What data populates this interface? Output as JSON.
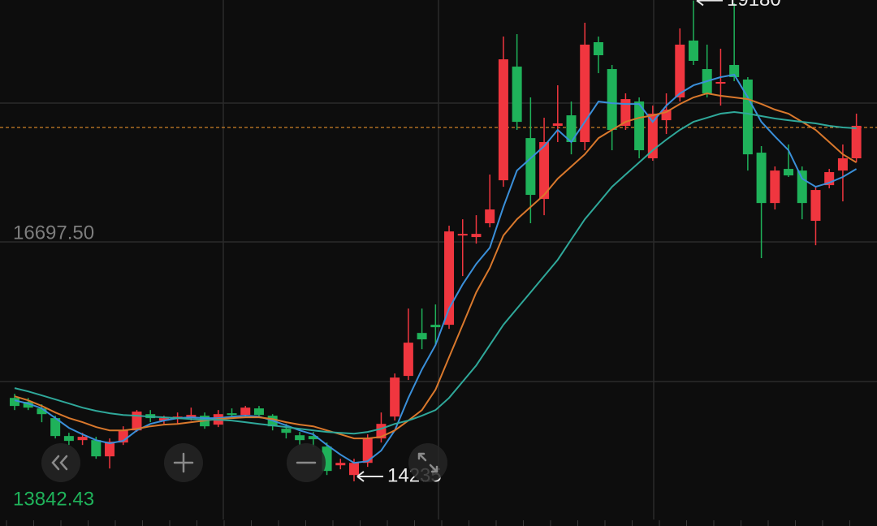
{
  "chart_data": {
    "type": "candlestick",
    "ylim": [
      13842.43,
      19185
    ],
    "yticks": [
      {
        "value": 16697.5,
        "label": "16697.50"
      },
      {
        "value": 13842.43,
        "label": "13842.43"
      }
    ],
    "grid_lines": [
      18125,
      15261
    ],
    "price_line": 17874,
    "up_color": "#f0363f",
    "down_color": "#1fb25a",
    "price_line_color": "#e08a2a",
    "open": [
      15093,
      15052,
      14985,
      14885,
      14701,
      14659,
      14659,
      14492,
      14634,
      14759,
      14926,
      14860,
      14876,
      14893,
      14910,
      14818,
      14935,
      14918,
      14985,
      14910,
      14776,
      14709,
      14701,
      14592,
      14400,
      14300,
      14425,
      14676,
      14901,
      15319,
      15761,
      15845,
      15845,
      16763,
      16747,
      16889,
      17331,
      18500,
      17765,
      17139,
      17891,
      17999,
      17724,
      18751,
      18475,
      17891,
      18141,
      17557,
      17949,
      18183,
      18768,
      18475,
      18325,
      18517,
      18367,
      17615,
      17097,
      17448,
      17431,
      16914,
      17281,
      17431,
      17557
    ],
    "high": [
      15135,
      15093,
      15027,
      14910,
      14734,
      14734,
      14693,
      14676,
      14801,
      14968,
      14968,
      14910,
      14943,
      14993,
      14943,
      14968,
      14985,
      15010,
      15010,
      14926,
      14826,
      14743,
      14743,
      14634,
      14467,
      14467,
      14718,
      14943,
      15344,
      16012,
      16012,
      16054,
      16864,
      16930,
      16972,
      17390,
      18809,
      18834,
      18183,
      17974,
      18308,
      18141,
      18951,
      18809,
      18517,
      18225,
      18183,
      18099,
      18225,
      18893,
      19180,
      18726,
      18684,
      19150,
      18392,
      17682,
      17473,
      17699,
      17473,
      17264,
      17448,
      17699,
      18016
    ],
    "low": [
      14968,
      14968,
      14843,
      14676,
      14609,
      14609,
      14467,
      14367,
      14609,
      14743,
      14843,
      14826,
      14826,
      14860,
      14776,
      14793,
      14885,
      14893,
      14893,
      14759,
      14676,
      14609,
      14592,
      14300,
      14359,
      14235,
      14384,
      14634,
      14860,
      15277,
      15594,
      15636,
      15803,
      16346,
      16680,
      16847,
      17264,
      17849,
      16889,
      16972,
      17724,
      17598,
      17640,
      18433,
      17640,
      17849,
      17557,
      17532,
      17807,
      18141,
      18517,
      18183,
      18099,
      18350,
      17431,
      16530,
      17031,
      17365,
      16930,
      16663,
      17248,
      17114,
      17515
    ],
    "close": [
      15010,
      14993,
      14926,
      14701,
      14651,
      14693,
      14492,
      14643,
      14759,
      14952,
      14885,
      14885,
      14901,
      14918,
      14801,
      14926,
      14918,
      14993,
      14918,
      14801,
      14734,
      14659,
      14668,
      14342,
      14425,
      14425,
      14676,
      14826,
      15302,
      15661,
      15695,
      15820,
      16805,
      16780,
      16780,
      17031,
      18575,
      17932,
      17181,
      17724,
      17916,
      17724,
      18726,
      18617,
      17849,
      18166,
      17640,
      18016,
      18058,
      18726,
      18559,
      18225,
      18342,
      18392,
      17598,
      17097,
      17431,
      17381,
      17097,
      17231,
      17415,
      17557,
      17891
    ],
    "lines": [
      {
        "color": "#3a8fd9",
        "values": [
          15068,
          15035,
          14985,
          14885,
          14785,
          14718,
          14659,
          14626,
          14651,
          14759,
          14826,
          14860,
          14885,
          14893,
          14885,
          14885,
          14901,
          14910,
          14901,
          14860,
          14810,
          14759,
          14718,
          14609,
          14509,
          14425,
          14442,
          14551,
          14759,
          15093,
          15386,
          15636,
          16012,
          16262,
          16471,
          16638,
          17056,
          17431,
          17557,
          17682,
          17849,
          17724,
          17932,
          18141,
          18124,
          18116,
          18116,
          17932,
          18099,
          18225,
          18308,
          18350,
          18392,
          18417,
          18183,
          17932,
          17782,
          17640,
          17348,
          17264,
          17306,
          17365,
          17448
        ]
      },
      {
        "color": "#d9782c",
        "values": [
          15110,
          15068,
          15010,
          14943,
          14885,
          14843,
          14793,
          14759,
          14759,
          14776,
          14801,
          14818,
          14826,
          14843,
          14860,
          14876,
          14885,
          14893,
          14893,
          14876,
          14843,
          14818,
          14801,
          14759,
          14718,
          14676,
          14676,
          14693,
          14759,
          14860,
          14968,
          15177,
          15511,
          15845,
          16179,
          16430,
          16763,
          16930,
          17056,
          17181,
          17348,
          17473,
          17598,
          17765,
          17849,
          17932,
          17974,
          17999,
          18033,
          18116,
          18183,
          18225,
          18200,
          18183,
          18166,
          18116,
          18058,
          18016,
          17932,
          17849,
          17724,
          17598,
          17515
        ]
      },
      {
        "color": "#2fa89a",
        "values": [
          15194,
          15160,
          15119,
          15077,
          15035,
          14993,
          14960,
          14935,
          14918,
          14910,
          14901,
          14893,
          14885,
          14876,
          14868,
          14868,
          14860,
          14843,
          14826,
          14810,
          14793,
          14776,
          14759,
          14743,
          14734,
          14726,
          14743,
          14776,
          14826,
          14860,
          14910,
          14968,
          15093,
          15261,
          15428,
          15636,
          15845,
          16012,
          16179,
          16346,
          16513,
          16722,
          16930,
          17097,
          17264,
          17390,
          17515,
          17640,
          17749,
          17849,
          17932,
          17974,
          18016,
          18033,
          18016,
          17991,
          17966,
          17949,
          17932,
          17916,
          17891,
          17874,
          17866
        ]
      }
    ]
  }
}
